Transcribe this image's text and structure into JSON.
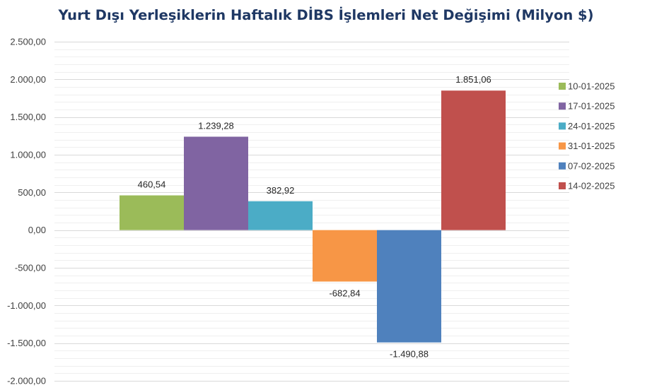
{
  "chart_data": {
    "type": "bar",
    "title": "Yurt Dışı Yerleşiklerin Haftalık DİBS İşlemleri Net Değişimi (Milyon $)",
    "xlabel": "",
    "ylabel": "",
    "ylim": [
      -2000,
      2500
    ],
    "yticks": [
      2500,
      2000,
      1500,
      1000,
      500,
      0,
      -500,
      -1000,
      -1500,
      -2000
    ],
    "ytick_labels": [
      "2.500,00",
      "2.000,00",
      "1.500,00",
      "1.000,00",
      "500,00",
      "0,00",
      "-500,00",
      "-1.000,00",
      "-1.500,00",
      "-2.000,00"
    ],
    "grid": true,
    "legend_position": "right",
    "series": [
      {
        "name": "10-01-2025",
        "value": 460.54,
        "label": "460,54",
        "color": "#9bbb59"
      },
      {
        "name": "17-01-2025",
        "value": 1239.28,
        "label": "1.239,28",
        "color": "#8064a2"
      },
      {
        "name": "24-01-2025",
        "value": 382.92,
        "label": "382,92",
        "color": "#4bacc6"
      },
      {
        "name": "31-01-2025",
        "value": -682.84,
        "label": "-682,84",
        "color": "#f79646"
      },
      {
        "name": "07-02-2025",
        "value": -1490.88,
        "label": "-1.490,88",
        "color": "#4f81bd"
      },
      {
        "name": "14-02-2025",
        "value": 1851.06,
        "label": "1.851,06",
        "color": "#c0504d"
      }
    ]
  }
}
